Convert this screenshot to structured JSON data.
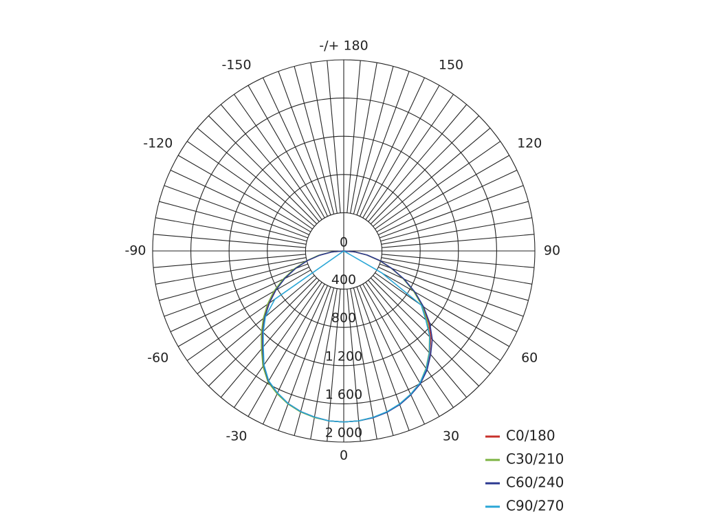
{
  "chart_data": {
    "type": "polar-line",
    "title": "",
    "angle_labels": [
      {
        "angle": 180,
        "text": "-/+ 180"
      },
      {
        "angle": 150,
        "text": "150"
      },
      {
        "angle": 120,
        "text": "120"
      },
      {
        "angle": 90,
        "text": "90"
      },
      {
        "angle": 60,
        "text": "60"
      },
      {
        "angle": 30,
        "text": "30"
      },
      {
        "angle": 0,
        "text": "0"
      },
      {
        "angle": -30,
        "text": "-30"
      },
      {
        "angle": -60,
        "text": "-60"
      },
      {
        "angle": -90,
        "text": "-90"
      },
      {
        "angle": -120,
        "text": "-120"
      },
      {
        "angle": -150,
        "text": "-150"
      }
    ],
    "angle_grid_step": 5,
    "radial_range": [
      0,
      2000
    ],
    "radial_ticks": [
      {
        "value": 0,
        "text": "0"
      },
      {
        "value": 400,
        "text": "400"
      },
      {
        "value": 800,
        "text": "800"
      },
      {
        "value": 1200,
        "text": "1 200"
      },
      {
        "value": 1600,
        "text": "1 600"
      },
      {
        "value": 2000,
        "text": "2 000"
      }
    ],
    "legend_position": "bottom-right",
    "gamma": [
      -90,
      -85,
      -80,
      -75,
      -70,
      -65,
      -60,
      -55,
      -50,
      -45,
      -40,
      -35,
      -30,
      -25,
      -20,
      -15,
      -10,
      -5,
      0,
      5,
      10,
      15,
      20,
      25,
      30,
      35,
      40,
      45,
      50,
      55,
      60,
      65,
      70,
      75,
      80,
      85,
      90
    ],
    "series": [
      {
        "name": "C0/180",
        "color": "#c8312b",
        "values": [
          0,
          130,
          260,
          400,
          540,
          690,
          830,
          960,
          1090,
          1210,
          1330,
          1470,
          1580,
          1645,
          1700,
          1740,
          1765,
          1785,
          1790,
          1785,
          1770,
          1745,
          1710,
          1660,
          1600,
          1510,
          1400,
          1290,
          1160,
          1010,
          850,
          690,
          530,
          385,
          245,
          120,
          0
        ]
      },
      {
        "name": "C30/210",
        "color": "#7cb342",
        "values": [
          0,
          135,
          270,
          410,
          555,
          700,
          845,
          975,
          1100,
          1220,
          1340,
          1475,
          1585,
          1650,
          1705,
          1745,
          1770,
          1785,
          1790,
          1785,
          1770,
          1745,
          1705,
          1655,
          1595,
          1500,
          1390,
          1270,
          1140,
          1000,
          845,
          685,
          530,
          385,
          245,
          120,
          0
        ]
      },
      {
        "name": "C60/240",
        "color": "#2b3990",
        "values": [
          0,
          125,
          255,
          395,
          535,
          680,
          820,
          950,
          1080,
          1200,
          1320,
          1460,
          1575,
          1640,
          1700,
          1740,
          1765,
          1785,
          1790,
          1785,
          1772,
          1748,
          1712,
          1662,
          1605,
          1520,
          1415,
          1310,
          1175,
          1020,
          860,
          695,
          535,
          390,
          250,
          120,
          0
        ]
      },
      {
        "name": "C90/270",
        "color": "#2aa6d6",
        "values": [
          0,
          0,
          0,
          0,
          0,
          0,
          0,
          880,
          1070,
          1190,
          1310,
          1455,
          1570,
          1640,
          1700,
          1740,
          1765,
          1785,
          1790,
          1785,
          1768,
          1742,
          1705,
          1655,
          1595,
          1505,
          1395,
          1275,
          1120,
          990,
          460,
          0,
          0,
          0,
          0,
          0,
          0
        ]
      }
    ]
  }
}
